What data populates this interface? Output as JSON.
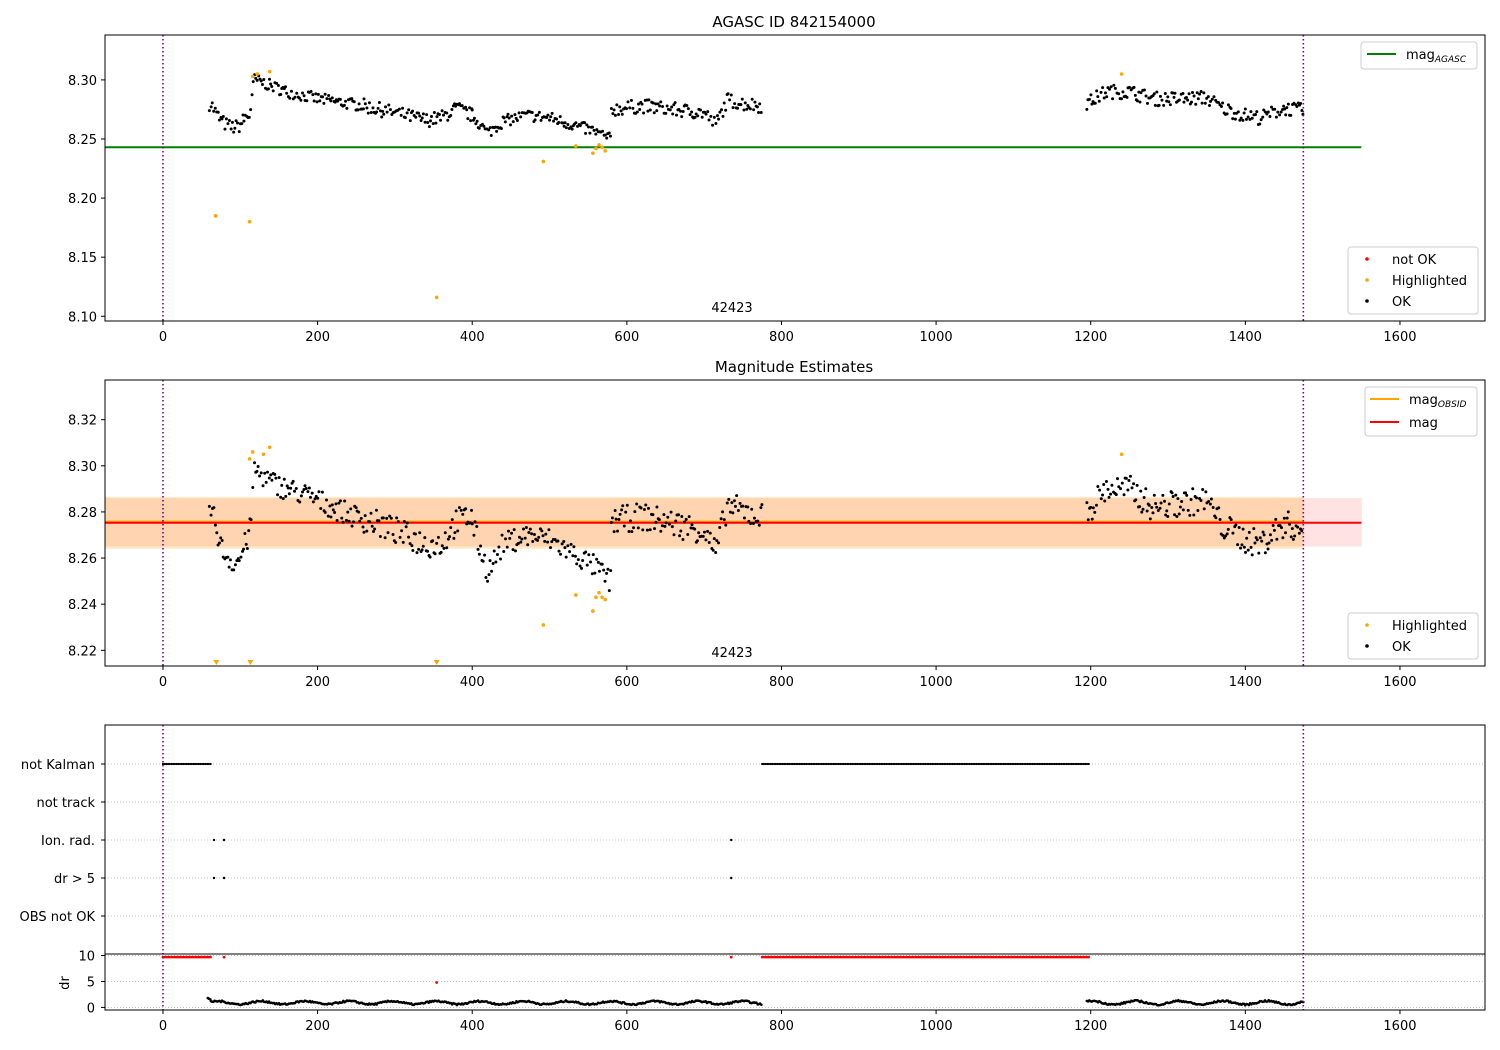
{
  "chart_data": [
    {
      "type": "scatter",
      "title": "AGASC ID 842154000",
      "xlabel": "",
      "ylabel": "",
      "xlim": [
        -75,
        1710
      ],
      "ylim": [
        8.096,
        8.338
      ],
      "x_ticks": [
        0,
        200,
        400,
        600,
        800,
        1000,
        1200,
        1400,
        1600
      ],
      "y_ticks": [
        8.1,
        8.15,
        8.2,
        8.25,
        8.3
      ],
      "grid": false,
      "annotation": "42423",
      "vlines": [
        0,
        1475
      ],
      "vline_color": "#800080",
      "hlines": [
        {
          "name": "mag_AGASC",
          "y": 8.243,
          "x_range": [
            -75,
            1550
          ],
          "color": "#008000"
        }
      ],
      "legend_upper": {
        "placement": "top-right",
        "entries": [
          {
            "label": "mag",
            "sub": "AGASC",
            "color": "#008000"
          }
        ]
      },
      "legend_lower": {
        "placement": "bottom-right",
        "entries": [
          {
            "label": "not OK",
            "color": "#ff0000"
          },
          {
            "label": "Highlighted",
            "color": "#ffa500"
          },
          {
            "label": "OK",
            "color": "#000000"
          }
        ]
      },
      "ok_segments": [
        {
          "x_range": [
            60,
            120
          ],
          "points": [
            [
              62,
              8.28
            ],
            [
              66,
              8.275
            ],
            [
              70,
              8.27
            ],
            [
              76,
              8.265
            ],
            [
              82,
              8.262
            ],
            [
              88,
              8.26
            ],
            [
              94,
              8.26
            ],
            [
              100,
              8.262
            ],
            [
              106,
              8.268
            ],
            [
              112,
              8.27
            ],
            [
              118,
              8.3
            ]
          ],
          "spread": 0.006
        },
        {
          "x_range": [
            120,
            260
          ],
          "points": [
            [
              120,
              8.3
            ],
            [
              140,
              8.295
            ],
            [
              160,
              8.29
            ],
            [
              180,
              8.287
            ],
            [
              200,
              8.284
            ],
            [
              220,
              8.282
            ],
            [
              240,
              8.28
            ],
            [
              260,
              8.278
            ]
          ],
          "spread": 0.005
        },
        {
          "x_range": [
            260,
            400
          ],
          "points": [
            [
              260,
              8.278
            ],
            [
              300,
              8.272
            ],
            [
              340,
              8.266
            ],
            [
              360,
              8.268
            ],
            [
              380,
              8.276
            ],
            [
              400,
              8.27
            ]
          ],
          "spread": 0.006
        },
        {
          "x_range": [
            400,
            580
          ],
          "points": [
            [
              400,
              8.27
            ],
            [
              420,
              8.255
            ],
            [
              440,
              8.265
            ],
            [
              470,
              8.27
            ],
            [
              500,
              8.268
            ],
            [
              530,
              8.262
            ],
            [
              560,
              8.256
            ],
            [
              578,
              8.25
            ]
          ],
          "spread": 0.005
        },
        {
          "x_range": [
            580,
            775
          ],
          "points": [
            [
              580,
              8.275
            ],
            [
              620,
              8.278
            ],
            [
              660,
              8.275
            ],
            [
              700,
              8.272
            ],
            [
              715,
              8.262
            ],
            [
              730,
              8.283
            ],
            [
              750,
              8.28
            ],
            [
              775,
              8.278
            ]
          ],
          "spread": 0.006
        },
        {
          "x_range": [
            1195,
            1475
          ],
          "points": [
            [
              1195,
              8.28
            ],
            [
              1220,
              8.29
            ],
            [
              1250,
              8.29
            ],
            [
              1280,
              8.284
            ],
            [
              1320,
              8.284
            ],
            [
              1350,
              8.285
            ],
            [
              1370,
              8.276
            ],
            [
              1400,
              8.27
            ],
            [
              1420,
              8.268
            ],
            [
              1450,
              8.276
            ],
            [
              1475,
              8.274
            ]
          ],
          "spread": 0.006
        }
      ],
      "highlighted_points": [
        [
          68,
          8.185
        ],
        [
          112,
          8.18
        ],
        [
          116,
          8.303
        ],
        [
          122,
          8.305
        ],
        [
          138,
          8.307
        ],
        [
          354,
          8.116
        ],
        [
          492,
          8.231
        ],
        [
          534,
          8.244
        ],
        [
          556,
          8.238
        ],
        [
          560,
          8.242
        ],
        [
          564,
          8.245
        ],
        [
          568,
          8.243
        ],
        [
          572,
          8.24
        ],
        [
          1240,
          8.305
        ]
      ],
      "not_ok_points": []
    },
    {
      "type": "scatter",
      "title": "Magnitude Estimates",
      "xlabel": "",
      "ylabel": "",
      "xlim": [
        -75,
        1710
      ],
      "ylim": [
        8.2132,
        8.3372
      ],
      "x_ticks": [
        0,
        200,
        400,
        600,
        800,
        1000,
        1200,
        1400,
        1600
      ],
      "y_ticks": [
        8.22,
        8.24,
        8.26,
        8.28,
        8.3,
        8.32
      ],
      "grid": false,
      "annotation": "42423",
      "vlines": [
        0,
        1475
      ],
      "vline_color": "#800080",
      "bands": [
        {
          "y": [
            8.265,
            8.286
          ],
          "x_range": [
            -75,
            1550
          ],
          "color": "#ff0000",
          "opacity": 0.11
        },
        {
          "y": [
            8.264,
            8.2865
          ],
          "x_range": [
            -75,
            1475
          ],
          "color": "#ffa500",
          "opacity": 0.22
        }
      ],
      "hlines": [
        {
          "name": "mag_OBSID",
          "y": 8.2758,
          "x_range": [
            -75,
            1475
          ],
          "color": "#ffa500"
        },
        {
          "name": "mag",
          "y": 8.2753,
          "x_range": [
            -75,
            1550
          ],
          "color": "#ff0000"
        }
      ],
      "legend_upper": {
        "placement": "top-right",
        "entries": [
          {
            "label": "mag",
            "sub": "OBSID",
            "color": "#ffa500"
          },
          {
            "label": "mag",
            "sub": "",
            "color": "#ff0000"
          }
        ]
      },
      "legend_lower": {
        "placement": "bottom-right",
        "entries": [
          {
            "label": "Highlighted",
            "color": "#ffa500"
          },
          {
            "label": "OK",
            "color": "#000000"
          }
        ]
      },
      "ok_segments": [
        {
          "x_range": [
            60,
            120
          ],
          "points": [
            [
              62,
              8.28
            ],
            [
              66,
              8.277
            ],
            [
              70,
              8.272
            ],
            [
              76,
              8.264
            ],
            [
              82,
              8.261
            ],
            [
              88,
              8.259
            ],
            [
              94,
              8.258
            ],
            [
              100,
              8.26
            ],
            [
              106,
              8.266
            ],
            [
              112,
              8.27
            ],
            [
              118,
              8.298
            ]
          ],
          "spread": 0.005
        },
        {
          "x_range": [
            120,
            260
          ],
          "points": [
            [
              120,
              8.298
            ],
            [
              140,
              8.293
            ],
            [
              160,
              8.29
            ],
            [
              180,
              8.288
            ],
            [
              200,
              8.285
            ],
            [
              220,
              8.282
            ],
            [
              240,
              8.279
            ],
            [
              260,
              8.277
            ]
          ],
          "spread": 0.005
        },
        {
          "x_range": [
            260,
            400
          ],
          "points": [
            [
              260,
              8.277
            ],
            [
              300,
              8.272
            ],
            [
              340,
              8.266
            ],
            [
              360,
              8.266
            ],
            [
              380,
              8.276
            ],
            [
              400,
              8.278
            ]
          ],
          "spread": 0.006
        },
        {
          "x_range": [
            400,
            580
          ],
          "points": [
            [
              400,
              8.275
            ],
            [
              420,
              8.254
            ],
            [
              440,
              8.266
            ],
            [
              470,
              8.27
            ],
            [
              500,
              8.268
            ],
            [
              530,
              8.262
            ],
            [
              560,
              8.256
            ],
            [
              578,
              8.25
            ]
          ],
          "spread": 0.005
        },
        {
          "x_range": [
            580,
            775
          ],
          "points": [
            [
              580,
              8.276
            ],
            [
              620,
              8.278
            ],
            [
              660,
              8.275
            ],
            [
              700,
              8.272
            ],
            [
              715,
              8.262
            ],
            [
              730,
              8.283
            ],
            [
              750,
              8.28
            ],
            [
              775,
              8.278
            ]
          ],
          "spread": 0.006
        },
        {
          "x_range": [
            1195,
            1475
          ],
          "points": [
            [
              1195,
              8.28
            ],
            [
              1220,
              8.29
            ],
            [
              1250,
              8.29
            ],
            [
              1280,
              8.282
            ],
            [
              1320,
              8.284
            ],
            [
              1350,
              8.285
            ],
            [
              1370,
              8.274
            ],
            [
              1400,
              8.268
            ],
            [
              1420,
              8.266
            ],
            [
              1450,
              8.275
            ],
            [
              1475,
              8.272
            ]
          ],
          "spread": 0.006
        }
      ],
      "highlighted_points": [
        [
          112,
          8.303
        ],
        [
          116,
          8.306
        ],
        [
          130,
          8.305
        ],
        [
          138,
          8.308
        ],
        [
          492,
          8.231
        ],
        [
          534,
          8.244
        ],
        [
          556,
          8.237
        ],
        [
          560,
          8.243
        ],
        [
          564,
          8.245
        ],
        [
          568,
          8.243
        ],
        [
          572,
          8.242
        ],
        [
          1240,
          8.305
        ]
      ],
      "clipped_below_markers": [
        69,
        113,
        354
      ]
    },
    {
      "type": "scatter",
      "title": "",
      "xlim": [
        -75,
        1710
      ],
      "x_ticks": [
        0,
        200,
        400,
        600,
        800,
        1000,
        1200,
        1400,
        1600
      ],
      "vlines": [
        0,
        1475
      ],
      "vline_color": "#800080",
      "flags": {
        "rows": [
          "not Kalman",
          "not track",
          "Ion. rad.",
          "dr > 5",
          "OBS not OK"
        ],
        "grid": true,
        "series": [
          {
            "row": "not Kalman",
            "ranges": [
              [
                0,
                62
              ],
              [
                775,
                1198
              ]
            ]
          },
          {
            "row": "not track",
            "ranges": []
          },
          {
            "row": "Ion. rad.",
            "points": [
              66,
              79,
              735
            ]
          },
          {
            "row": "dr > 5",
            "points": [
              66,
              79,
              735
            ]
          },
          {
            "row": "OBS not OK",
            "points": []
          }
        ]
      },
      "dr": {
        "ylabel": "dr",
        "ylim": [
          -0.5,
          10.3
        ],
        "y_ticks": [
          0,
          5,
          10
        ],
        "grid": true,
        "segments": [
          {
            "x_range": [
              58,
              62
            ],
            "y": [
              1.8,
              1.5
            ]
          },
          {
            "x_range": [
              62,
              775
            ],
            "y_base": 0.9,
            "wiggle": 0.3
          },
          {
            "x_range": [
              1195,
              1475
            ],
            "y_base": 0.9,
            "wiggle": 0.35
          }
        ],
        "red_points_y": 9.7,
        "red_ranges": [
          [
            0,
            62
          ],
          [
            775,
            1198
          ]
        ],
        "red_singles": [
          79,
          735
        ],
        "red_outlier": [
          354,
          4.8
        ]
      }
    }
  ]
}
